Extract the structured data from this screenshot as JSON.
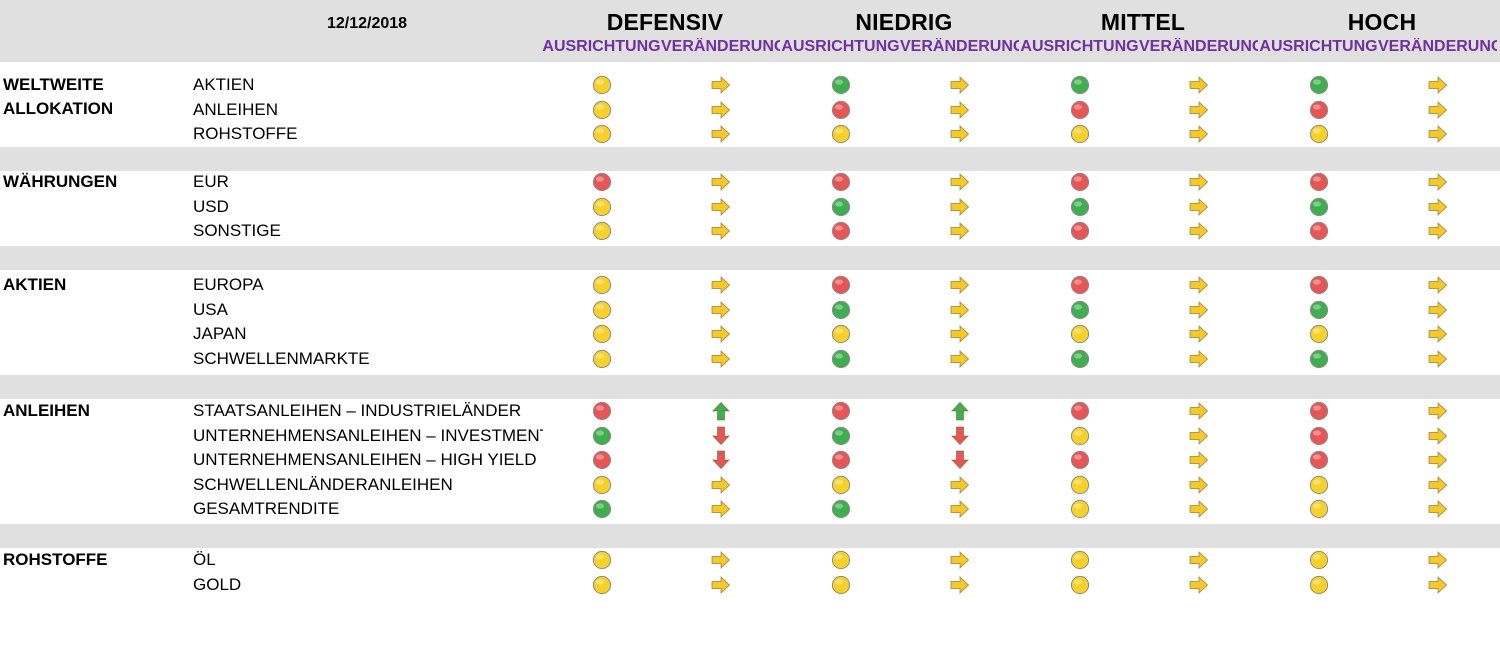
{
  "header": {
    "date": "12/12/2018",
    "groups": [
      {
        "title": "DEFENSIV",
        "sub_orientation": "AUSRICHTUNG",
        "sub_change": "VERÄNDERUNG"
      },
      {
        "title": "NIEDRIG",
        "sub_orientation": "AUSRICHTUNG",
        "sub_change": "VERÄNDERUNG"
      },
      {
        "title": "MITTEL",
        "sub_orientation": "AUSRICHTUNG",
        "sub_change": "VERÄNDERUNG"
      },
      {
        "title": "HOCH",
        "sub_orientation": "AUSRICHTUNG",
        "sub_change": "VERÄNDERUNG"
      }
    ]
  },
  "colors": {
    "header_bg": "#e0e0e0",
    "subheader_text": "#7030a0",
    "dot_yellow": "#f7d128",
    "dot_red": "#e85555",
    "dot_green": "#3fae4f",
    "arrow_orange": "#f7c82a",
    "arrow_up_green": "#3fae4f",
    "arrow_down_red": "#e85555"
  },
  "sections": [
    {
      "label": "WELTWEITE ALLOKATION",
      "rows": [
        {
          "label": "AKTIEN",
          "cells": [
            [
              "yellow",
              "right"
            ],
            [
              "green",
              "right"
            ],
            [
              "green",
              "right"
            ],
            [
              "green",
              "right"
            ]
          ]
        },
        {
          "label": "ANLEIHEN",
          "cells": [
            [
              "yellow",
              "right"
            ],
            [
              "red",
              "right"
            ],
            [
              "red",
              "right"
            ],
            [
              "red",
              "right"
            ]
          ]
        },
        {
          "label": "ROHSTOFFE",
          "cells": [
            [
              "yellow",
              "right"
            ],
            [
              "yellow",
              "right"
            ],
            [
              "yellow",
              "right"
            ],
            [
              "yellow",
              "right"
            ]
          ]
        }
      ]
    },
    {
      "label": "WÄHRUNGEN",
      "rows": [
        {
          "label": "EUR",
          "cells": [
            [
              "red",
              "right"
            ],
            [
              "red",
              "right"
            ],
            [
              "red",
              "right"
            ],
            [
              "red",
              "right"
            ]
          ]
        },
        {
          "label": "USD",
          "cells": [
            [
              "yellow",
              "right"
            ],
            [
              "green",
              "right"
            ],
            [
              "green",
              "right"
            ],
            [
              "green",
              "right"
            ]
          ]
        },
        {
          "label": "SONSTIGE",
          "cells": [
            [
              "yellow",
              "right"
            ],
            [
              "red",
              "right"
            ],
            [
              "red",
              "right"
            ],
            [
              "red",
              "right"
            ]
          ]
        }
      ]
    },
    {
      "label": "AKTIEN",
      "rows": [
        {
          "label": "EUROPA",
          "cells": [
            [
              "yellow",
              "right"
            ],
            [
              "red",
              "right"
            ],
            [
              "red",
              "right"
            ],
            [
              "red",
              "right"
            ]
          ]
        },
        {
          "label": "USA",
          "cells": [
            [
              "yellow",
              "right"
            ],
            [
              "green",
              "right"
            ],
            [
              "green",
              "right"
            ],
            [
              "green",
              "right"
            ]
          ]
        },
        {
          "label": "JAPAN",
          "cells": [
            [
              "yellow",
              "right"
            ],
            [
              "yellow",
              "right"
            ],
            [
              "yellow",
              "right"
            ],
            [
              "yellow",
              "right"
            ]
          ]
        },
        {
          "label": "SCHWELLENMARKTE",
          "cells": [
            [
              "yellow",
              "right"
            ],
            [
              "green",
              "right"
            ],
            [
              "green",
              "right"
            ],
            [
              "green",
              "right"
            ]
          ]
        }
      ]
    },
    {
      "label": "ANLEIHEN",
      "rows": [
        {
          "label": "STAATSANLEIHEN – INDUSTRIELÄNDER",
          "cells": [
            [
              "red",
              "up"
            ],
            [
              "red",
              "up"
            ],
            [
              "red",
              "right"
            ],
            [
              "red",
              "right"
            ]
          ]
        },
        {
          "label": "UNTERNEHMENSANLEIHEN – INVESTMENT GRADE",
          "cells": [
            [
              "green",
              "down"
            ],
            [
              "green",
              "down"
            ],
            [
              "yellow",
              "right"
            ],
            [
              "red",
              "right"
            ]
          ]
        },
        {
          "label": "UNTERNEHMENSANLEIHEN – HIGH YIELD",
          "cells": [
            [
              "red",
              "down"
            ],
            [
              "red",
              "down"
            ],
            [
              "red",
              "right"
            ],
            [
              "red",
              "right"
            ]
          ]
        },
        {
          "label": "SCHWELLENLÄNDERANLEIHEN",
          "cells": [
            [
              "yellow",
              "right"
            ],
            [
              "yellow",
              "right"
            ],
            [
              "yellow",
              "right"
            ],
            [
              "yellow",
              "right"
            ]
          ]
        },
        {
          "label": "GESAMTRENDITE",
          "cells": [
            [
              "green",
              "right"
            ],
            [
              "green",
              "right"
            ],
            [
              "yellow",
              "right"
            ],
            [
              "yellow",
              "right"
            ]
          ]
        }
      ]
    },
    {
      "label": "ROHSTOFFE",
      "rows": [
        {
          "label": "ÖL",
          "cells": [
            [
              "yellow",
              "right"
            ],
            [
              "yellow",
              "right"
            ],
            [
              "yellow",
              "right"
            ],
            [
              "yellow",
              "right"
            ]
          ]
        },
        {
          "label": "GOLD",
          "cells": [
            [
              "yellow",
              "right"
            ],
            [
              "yellow",
              "right"
            ],
            [
              "yellow",
              "right"
            ],
            [
              "yellow",
              "right"
            ]
          ]
        }
      ]
    }
  ]
}
